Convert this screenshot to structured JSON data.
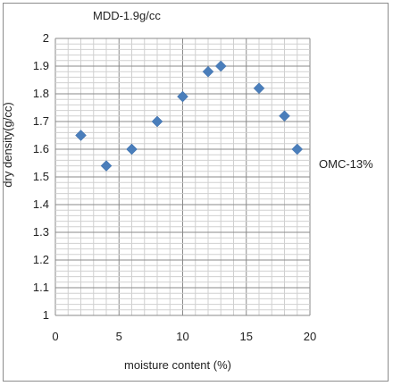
{
  "chart_data": {
    "type": "scatter",
    "title": "",
    "xlabel": "moisture content (%)",
    "ylabel": "dry density(g/cc)",
    "xlim": [
      0,
      20
    ],
    "ylim": [
      1,
      2
    ],
    "x_ticks": [
      "0",
      "5",
      "10",
      "15",
      "20"
    ],
    "y_ticks": [
      "1",
      "1.1",
      "1.2",
      "1.3",
      "1.4",
      "1.5",
      "1.6",
      "1.7",
      "1.8",
      "1.9",
      "2"
    ],
    "grid": true,
    "marker": "diamond",
    "marker_color": "#4a7ebb",
    "points": [
      {
        "x": 2,
        "y": 1.65
      },
      {
        "x": 4,
        "y": 1.54
      },
      {
        "x": 6,
        "y": 1.6
      },
      {
        "x": 8,
        "y": 1.7
      },
      {
        "x": 10,
        "y": 1.79
      },
      {
        "x": 12,
        "y": 1.88
      },
      {
        "x": 13,
        "y": 1.9
      },
      {
        "x": 16,
        "y": 1.82
      },
      {
        "x": 18,
        "y": 1.72
      },
      {
        "x": 19,
        "y": 1.6
      }
    ],
    "annotations": {
      "mdd": "MDD-1.9g/cc",
      "omc": "OMC-13%"
    }
  }
}
